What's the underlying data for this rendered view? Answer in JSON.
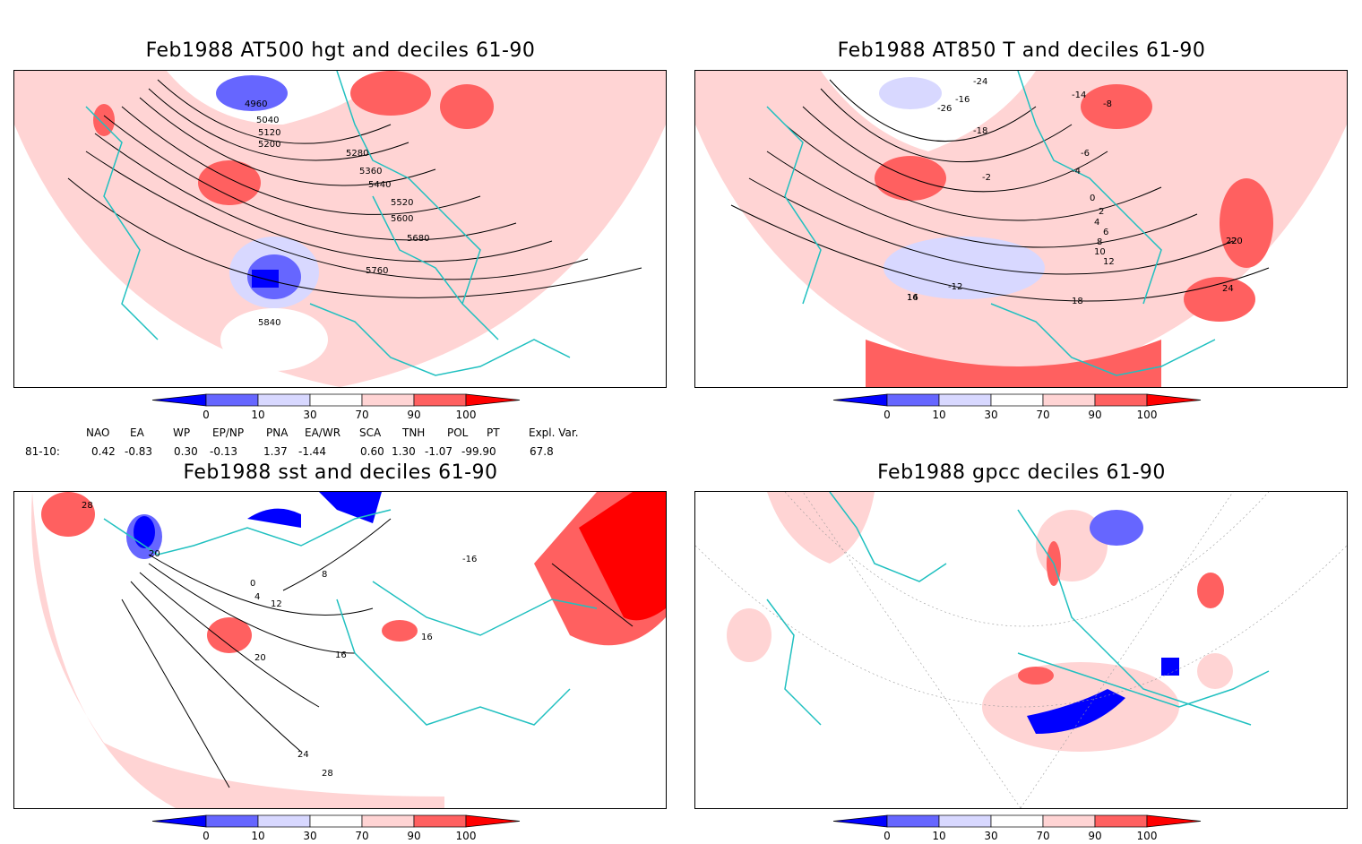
{
  "panels": [
    {
      "title": "Feb1988 AT500 hgt and deciles 61-90",
      "contour_labels": [
        "4960",
        "5040",
        "5120",
        "5200",
        "5280",
        "5360",
        "5440",
        "5520",
        "5600",
        "5680",
        "5760",
        "5840"
      ]
    },
    {
      "title": "Feb1988 AT850 T and deciles 61-90",
      "contour_labels": [
        "-24",
        "-26",
        "-16",
        "-18",
        "-14",
        "-12",
        "-8",
        "-6",
        "-4",
        "-2",
        "0",
        "2",
        "4",
        "6",
        "8",
        "10",
        "12",
        "14",
        "16",
        "18",
        "20",
        "22",
        "24"
      ]
    },
    {
      "title": "Feb1988 sst and deciles 61-90",
      "contour_labels": [
        "28",
        "20",
        "0",
        "4",
        "8",
        "12",
        "16",
        "20",
        "24",
        "28",
        "-16",
        "16"
      ]
    },
    {
      "title": "Feb1988 gpcc deciles 61-90",
      "contour_labels": []
    }
  ],
  "colorbar": {
    "ticks": [
      "0",
      "10",
      "30",
      "70",
      "90",
      "100"
    ],
    "colors": [
      "#0000ff",
      "#6666ff",
      "#d8d8ff",
      "#ffffff",
      "#ffd4d4",
      "#ff6060",
      "#ff0000"
    ]
  },
  "indices": {
    "period": "81-10:",
    "names": [
      "NAO",
      "EA",
      "WP",
      "EP/NP",
      "PNA",
      "EA/WR",
      "SCA",
      "TNH",
      "POL",
      "PT",
      "Expl. Var."
    ],
    "values": [
      "0.42",
      "-0.83",
      "0.30",
      "-0.13",
      "1.37",
      "-1.44",
      "0.60",
      "1.30",
      "-1.07",
      "-99.90",
      "67.8"
    ]
  }
}
